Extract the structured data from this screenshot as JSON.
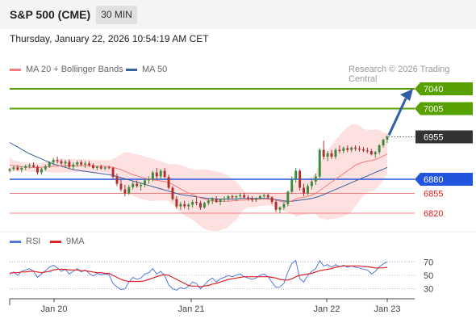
{
  "header": {
    "title": "S&P 500 (CME)",
    "timeframe": "30 MIN",
    "datetime": "Thursday, January 22, 2026 10:54:19 AM CET"
  },
  "legend": {
    "ma20_label": "MA 20 + Bollinger Bands",
    "ma50_label": "MA 50",
    "credit": "Research © 2026 Trading Central"
  },
  "rsi_legend": {
    "rsi_label": "RSI",
    "ma9_label": "9MA"
  },
  "colors": {
    "up": "#3d8a3d",
    "down": "#b03030",
    "ma20": "#f07c7c",
    "bands_fill": "#fde0e0",
    "ma50": "#3a5f9a",
    "resistance": "#56a000",
    "support": "#f08080",
    "pivot": "#2255dd",
    "current": "#333333",
    "rsi": "#5577dd",
    "rsi_ma": "#dd2222"
  },
  "chart_data": [
    {
      "type": "candlestick",
      "x_ticks": [
        "Jan 20",
        "Jan 21",
        "Jan 22",
        "Jan 23"
      ],
      "ylim": [
        6800,
        7060
      ],
      "levels": [
        {
          "label": "7040",
          "value": 7040,
          "kind": "resistance"
        },
        {
          "label": "7005",
          "value": 7005,
          "kind": "resistance"
        },
        {
          "label": "6955",
          "value": 6955,
          "kind": "current"
        },
        {
          "label": "6880",
          "value": 6880,
          "kind": "pivot"
        },
        {
          "label": "6855",
          "value": 6855,
          "kind": "support"
        },
        {
          "label": "6820",
          "value": 6820,
          "kind": "support"
        }
      ],
      "projection": {
        "from": 6955,
        "to": 7040
      },
      "candles": [
        [
          6895,
          6900,
          6892,
          6898
        ],
        [
          6898,
          6904,
          6895,
          6901
        ],
        [
          6901,
          6905,
          6895,
          6897
        ],
        [
          6897,
          6903,
          6892,
          6900
        ],
        [
          6900,
          6906,
          6896,
          6903
        ],
        [
          6903,
          6908,
          6899,
          6905
        ],
        [
          6905,
          6910,
          6900,
          6902
        ],
        [
          6902,
          6905,
          6888,
          6892
        ],
        [
          6892,
          6900,
          6888,
          6898
        ],
        [
          6898,
          6906,
          6895,
          6903
        ],
        [
          6903,
          6912,
          6900,
          6910
        ],
        [
          6910,
          6918,
          6905,
          6914
        ],
        [
          6914,
          6920,
          6908,
          6912
        ],
        [
          6912,
          6916,
          6904,
          6908
        ],
        [
          6908,
          6914,
          6900,
          6911
        ],
        [
          6911,
          6915,
          6898,
          6902
        ],
        [
          6902,
          6910,
          6897,
          6906
        ],
        [
          6906,
          6913,
          6902,
          6910
        ],
        [
          6910,
          6914,
          6903,
          6906
        ],
        [
          6906,
          6912,
          6900,
          6908
        ],
        [
          6908,
          6912,
          6902,
          6905
        ],
        [
          6905,
          6908,
          6898,
          6900
        ],
        [
          6900,
          6904,
          6896,
          6902
        ],
        [
          6902,
          6906,
          6897,
          6899
        ],
        [
          6899,
          6903,
          6896,
          6901
        ],
        [
          6901,
          6904,
          6898,
          6900
        ],
        [
          6900,
          6902,
          6880,
          6884
        ],
        [
          6884,
          6890,
          6868,
          6872
        ],
        [
          6872,
          6880,
          6858,
          6862
        ],
        [
          6862,
          6870,
          6850,
          6855
        ],
        [
          6855,
          6870,
          6852,
          6866
        ],
        [
          6866,
          6876,
          6862,
          6872
        ],
        [
          6872,
          6878,
          6865,
          6868
        ],
        [
          6868,
          6874,
          6860,
          6870
        ],
        [
          6870,
          6880,
          6866,
          6878
        ],
        [
          6878,
          6885,
          6872,
          6880
        ],
        [
          6880,
          6895,
          6876,
          6892
        ],
        [
          6892,
          6900,
          6880,
          6885
        ],
        [
          6885,
          6898,
          6880,
          6895
        ],
        [
          6895,
          6900,
          6882,
          6884
        ],
        [
          6884,
          6888,
          6862,
          6865
        ],
        [
          6865,
          6868,
          6842,
          6845
        ],
        [
          6845,
          6850,
          6828,
          6832
        ],
        [
          6832,
          6840,
          6826,
          6836
        ],
        [
          6836,
          6842,
          6828,
          6832
        ],
        [
          6832,
          6838,
          6826,
          6835
        ],
        [
          6835,
          6844,
          6830,
          6840
        ],
        [
          6840,
          6848,
          6834,
          6838
        ],
        [
          6838,
          6842,
          6826,
          6830
        ],
        [
          6830,
          6840,
          6828,
          6838
        ],
        [
          6838,
          6846,
          6834,
          6842
        ],
        [
          6842,
          6848,
          6836,
          6846
        ],
        [
          6846,
          6850,
          6838,
          6840
        ],
        [
          6840,
          6846,
          6834,
          6844
        ],
        [
          6844,
          6850,
          6840,
          6846
        ],
        [
          6846,
          6852,
          6842,
          6850
        ],
        [
          6850,
          6853,
          6844,
          6848
        ],
        [
          6848,
          6852,
          6842,
          6850
        ],
        [
          6850,
          6856,
          6846,
          6852
        ],
        [
          6852,
          6856,
          6846,
          6848
        ],
        [
          6848,
          6852,
          6842,
          6846
        ],
        [
          6846,
          6850,
          6840,
          6844
        ],
        [
          6844,
          6848,
          6840,
          6846
        ],
        [
          6846,
          6852,
          6844,
          6850
        ],
        [
          6850,
          6854,
          6846,
          6852
        ],
        [
          6852,
          6855,
          6845,
          6848
        ],
        [
          6848,
          6850,
          6836,
          6840
        ],
        [
          6840,
          6844,
          6822,
          6826
        ],
        [
          6826,
          6832,
          6820,
          6830
        ],
        [
          6830,
          6840,
          6826,
          6836
        ],
        [
          6836,
          6860,
          6832,
          6858
        ],
        [
          6858,
          6885,
          6854,
          6880
        ],
        [
          6880,
          6900,
          6874,
          6895
        ],
        [
          6895,
          6898,
          6860,
          6865
        ],
        [
          6865,
          6872,
          6850,
          6855
        ],
        [
          6855,
          6872,
          6852,
          6868
        ],
        [
          6868,
          6880,
          6862,
          6876
        ],
        [
          6876,
          6890,
          6870,
          6885
        ],
        [
          6885,
          6935,
          6882,
          6932
        ],
        [
          6932,
          6948,
          6915,
          6920
        ],
        [
          6920,
          6930,
          6912,
          6926
        ],
        [
          6926,
          6932,
          6916,
          6920
        ],
        [
          6920,
          6935,
          6916,
          6932
        ],
        [
          6932,
          6940,
          6926,
          6930
        ],
        [
          6930,
          6938,
          6926,
          6935
        ],
        [
          6935,
          6940,
          6928,
          6932
        ],
        [
          6932,
          6938,
          6928,
          6936
        ],
        [
          6936,
          6940,
          6930,
          6934
        ],
        [
          6934,
          6939,
          6929,
          6933
        ],
        [
          6933,
          6937,
          6928,
          6931
        ],
        [
          6931,
          6936,
          6926,
          6930
        ],
        [
          6930,
          6934,
          6922,
          6924
        ],
        [
          6924,
          6930,
          6918,
          6928
        ],
        [
          6928,
          6942,
          6924,
          6940
        ],
        [
          6940,
          6952,
          6936,
          6950
        ],
        [
          6950,
          6958,
          6944,
          6955
        ]
      ],
      "ma20": [
        6905,
        6904,
        6903,
        6902,
        6902,
        6901,
        6901,
        6901,
        6901,
        6902,
        6902,
        6903,
        6903,
        6904,
        6904,
        6904,
        6904,
        6904,
        6904,
        6904,
        6904,
        6903,
        6903,
        6903,
        6903,
        6902,
        6901,
        6899,
        6897,
        6894,
        6891,
        6888,
        6886,
        6884,
        6882,
        6880,
        6879,
        6878,
        6877,
        6876,
        6874,
        6871,
        6867,
        6863,
        6859,
        6856,
        6853,
        6850,
        6847,
        6845,
        6843,
        6842,
        6841,
        6841,
        6841,
        6841,
        6842,
        6842,
        6843,
        6843,
        6844,
        6844,
        6844,
        6845,
        6845,
        6845,
        6844,
        6843,
        6841,
        6840,
        6840,
        6842,
        6845,
        6847,
        6848,
        6850,
        6852,
        6855,
        6860,
        6865,
        6870,
        6875,
        6880,
        6885,
        6890,
        6895,
        6900,
        6905,
        6908,
        6910,
        6912,
        6913,
        6915,
        6918,
        6921,
        6925
      ],
      "ma50": [
        6945,
        6941,
        6937,
        6933,
        6929,
        6925,
        6922,
        6919,
        6916,
        6913,
        6910,
        6907,
        6905,
        6903,
        6901,
        6899,
        6897,
        6896,
        6895,
        6894,
        6893,
        6892,
        6891,
        6890,
        6889,
        6888,
        6887,
        6885,
        6883,
        6881,
        6879,
        6877,
        6875,
        6873,
        6871,
        6869,
        6867,
        6865,
        6863,
        6861,
        6859,
        6857,
        6855,
        6853,
        6852,
        6851,
        6850,
        6849,
        6848,
        6847,
        6846,
        6846,
        6845,
        6845,
        6845,
        6845,
        6845,
        6845,
        6846,
        6846,
        6846,
        6846,
        6846,
        6846,
        6846,
        6846,
        6845,
        6844,
        6843,
        6842,
        6841,
        6841,
        6842,
        6843,
        6844,
        6845,
        6846,
        6848,
        6850,
        6853,
        6856,
        6859,
        6862,
        6865,
        6868,
        6871,
        6874,
        6877,
        6880,
        6883,
        6886,
        6889,
        6892,
        6895,
        6898,
        6901
      ]
    },
    {
      "type": "line",
      "name": "RSI",
      "ylim": [
        20,
        80
      ],
      "y_ticks": [
        30,
        50,
        70
      ],
      "rsi": [
        52,
        55,
        50,
        56,
        58,
        60,
        56,
        47,
        52,
        57,
        62,
        65,
        61,
        56,
        59,
        52,
        56,
        60,
        55,
        58,
        53,
        49,
        53,
        51,
        52,
        51,
        38,
        33,
        29,
        30,
        40,
        47,
        44,
        46,
        52,
        54,
        60,
        52,
        56,
        50,
        36,
        30,
        28,
        32,
        30,
        34,
        40,
        38,
        30,
        36,
        42,
        46,
        40,
        45,
        47,
        50,
        48,
        50,
        52,
        48,
        46,
        44,
        46,
        50,
        52,
        48,
        40,
        32,
        33,
        38,
        55,
        68,
        72,
        45,
        40,
        50,
        56,
        60,
        72,
        64,
        66,
        62,
        66,
        63,
        65,
        62,
        64,
        62,
        61,
        59,
        58,
        52,
        56,
        63,
        67,
        70
      ],
      "rsi_ma": [
        53,
        54,
        54,
        55,
        55,
        56,
        56,
        55,
        54,
        55,
        56,
        58,
        59,
        59,
        59,
        58,
        58,
        58,
        57,
        57,
        56,
        55,
        54,
        54,
        53,
        53,
        50,
        47,
        44,
        42,
        41,
        41,
        41,
        41,
        42,
        44,
        46,
        48,
        50,
        51,
        50,
        47,
        44,
        41,
        38,
        35,
        34,
        34,
        33,
        34,
        35,
        37,
        38,
        40,
        42,
        44,
        45,
        46,
        47,
        48,
        48,
        48,
        48,
        48,
        48,
        48,
        47,
        46,
        44,
        43,
        43,
        45,
        48,
        50,
        51,
        52,
        53,
        55,
        57,
        58,
        59,
        60,
        62,
        63,
        64,
        64,
        64,
        64,
        64,
        63,
        63,
        62,
        61,
        61,
        61,
        62
      ]
    }
  ]
}
